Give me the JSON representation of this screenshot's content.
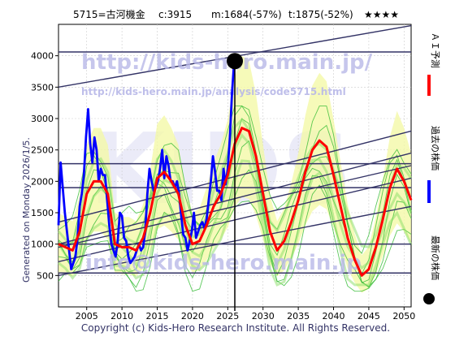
{
  "header": {
    "code_name": "5715=古河機金",
    "current": "c:3915",
    "median": "m:1684(-57%)",
    "target": "t:1875(-52%)",
    "stars": "★★★★"
  },
  "side_label": "Generated on Monday 2026/1/5.",
  "footer": "Copyright (c) Kids-Hero Research Institute. All Rights Reserved.",
  "watermark": {
    "url": "http://kids-hero.main.jp/",
    "analysis_url": "http://kids-hero.main.jp/analysis/code5715.html",
    "email": "info@kids-hero.main.jp",
    "big_text": "KIDS"
  },
  "legend": [
    {
      "label": "ＡＩ予測",
      "color": "#ff0000"
    },
    {
      "label": "過去の株価",
      "color": "#0000ff"
    },
    {
      "label": "最新の株価",
      "color": "#000000"
    }
  ],
  "chart_data": {
    "type": "line",
    "xlim": [
      2001,
      2051
    ],
    "ylim": [
      0,
      4500
    ],
    "x_ticks": [
      2005,
      2010,
      2015,
      2020,
      2025,
      2030,
      2035,
      2040,
      2045,
      2050
    ],
    "y_ticks": [
      500,
      1000,
      1500,
      2000,
      2500,
      3000,
      3500,
      4000
    ],
    "grid": true,
    "current_point": {
      "x": 2026.0,
      "y": 3915
    },
    "horizontal_levels": [
      4060,
      2280,
      1900,
      1000,
      540
    ],
    "trend_lines": [
      {
        "x": [
          2001,
          2051
        ],
        "y": [
          3500,
          4480
        ]
      },
      {
        "x": [
          2001,
          2051
        ],
        "y": [
          1350,
          2800
        ]
      },
      {
        "x": [
          2001,
          2051
        ],
        "y": [
          1000,
          2450
        ]
      },
      {
        "x": [
          2001,
          2051
        ],
        "y": [
          720,
          2050
        ]
      },
      {
        "x": [
          2001,
          2051
        ],
        "y": [
          500,
          1600
        ]
      },
      {
        "x": [
          2001,
          2051
        ],
        "y": [
          950,
          2250
        ]
      }
    ],
    "series": [
      {
        "name": "過去の株価",
        "color": "#0000ff",
        "x": [
          2001.0,
          2001.3,
          2001.6,
          2001.9,
          2002.2,
          2002.5,
          2002.8,
          2003.1,
          2003.4,
          2003.7,
          2004.0,
          2004.3,
          2004.6,
          2004.9,
          2005.2,
          2005.5,
          2005.8,
          2006.1,
          2006.4,
          2006.7,
          2007.0,
          2007.3,
          2007.6,
          2007.9,
          2008.2,
          2008.5,
          2008.8,
          2009.1,
          2009.4,
          2009.7,
          2010.0,
          2010.3,
          2010.6,
          2010.9,
          2011.2,
          2011.5,
          2011.8,
          2012.1,
          2012.4,
          2012.7,
          2013.0,
          2013.3,
          2013.6,
          2013.9,
          2014.2,
          2014.5,
          2014.8,
          2015.1,
          2015.4,
          2015.7,
          2016.0,
          2016.3,
          2016.6,
          2016.9,
          2017.2,
          2017.5,
          2017.8,
          2018.1,
          2018.4,
          2018.7,
          2019.0,
          2019.3,
          2019.6,
          2019.9,
          2020.2,
          2020.5,
          2020.8,
          2021.1,
          2021.4,
          2021.7,
          2022.0,
          2022.3,
          2022.6,
          2022.9,
          2023.2,
          2023.5,
          2023.8,
          2024.1,
          2024.4,
          2024.7,
          2025.0,
          2025.3,
          2025.6,
          2025.9,
          2026.0
        ],
        "y": [
          1300,
          2300,
          1900,
          1500,
          1200,
          900,
          600,
          700,
          800,
          1100,
          1600,
          1800,
          2100,
          2700,
          3150,
          2600,
          2300,
          2700,
          2500,
          2000,
          2200,
          2100,
          2100,
          1700,
          1300,
          1000,
          900,
          800,
          1050,
          1500,
          1450,
          1100,
          1050,
          800,
          700,
          750,
          800,
          900,
          1000,
          900,
          950,
          1200,
          1800,
          2200,
          2000,
          1850,
          1900,
          2000,
          2200,
          2500,
          2050,
          2400,
          2250,
          2000,
          2000,
          1900,
          2000,
          1800,
          1450,
          1150,
          1100,
          900,
          1050,
          1200,
          1500,
          1100,
          1200,
          1300,
          1350,
          1250,
          1400,
          1700,
          2000,
          2400,
          2150,
          1850,
          1850,
          1700,
          2200,
          1950,
          2200,
          2700,
          3400,
          3900,
          3915
        ]
      },
      {
        "name": "ＡＩ予測",
        "color": "#ff0000",
        "x": [
          2001.0,
          2002,
          2003,
          2004,
          2005,
          2006,
          2007,
          2008,
          2009,
          2010,
          2011,
          2012,
          2013,
          2014,
          2015,
          2016,
          2017,
          2018,
          2019,
          2020,
          2021,
          2022,
          2023,
          2024,
          2025,
          2026,
          2027,
          2028,
          2029,
          2030,
          2031,
          2032,
          2033,
          2034,
          2035,
          2036,
          2037,
          2038,
          2039,
          2040,
          2041,
          2042,
          2043,
          2044,
          2045,
          2046,
          2047,
          2048,
          2049,
          2050,
          2051
        ],
        "y": [
          1000,
          950,
          900,
          1200,
          1800,
          2000,
          2000,
          1800,
          1000,
          950,
          950,
          900,
          1100,
          1500,
          2050,
          2150,
          2000,
          1800,
          1300,
          1000,
          1050,
          1300,
          1600,
          1800,
          2100,
          2600,
          2850,
          2800,
          2400,
          1800,
          1200,
          900,
          1050,
          1350,
          1700,
          2150,
          2500,
          2650,
          2550,
          2100,
          1600,
          1100,
          750,
          500,
          600,
          950,
          1400,
          1900,
          2200,
          2000,
          1700
        ]
      }
    ]
  }
}
